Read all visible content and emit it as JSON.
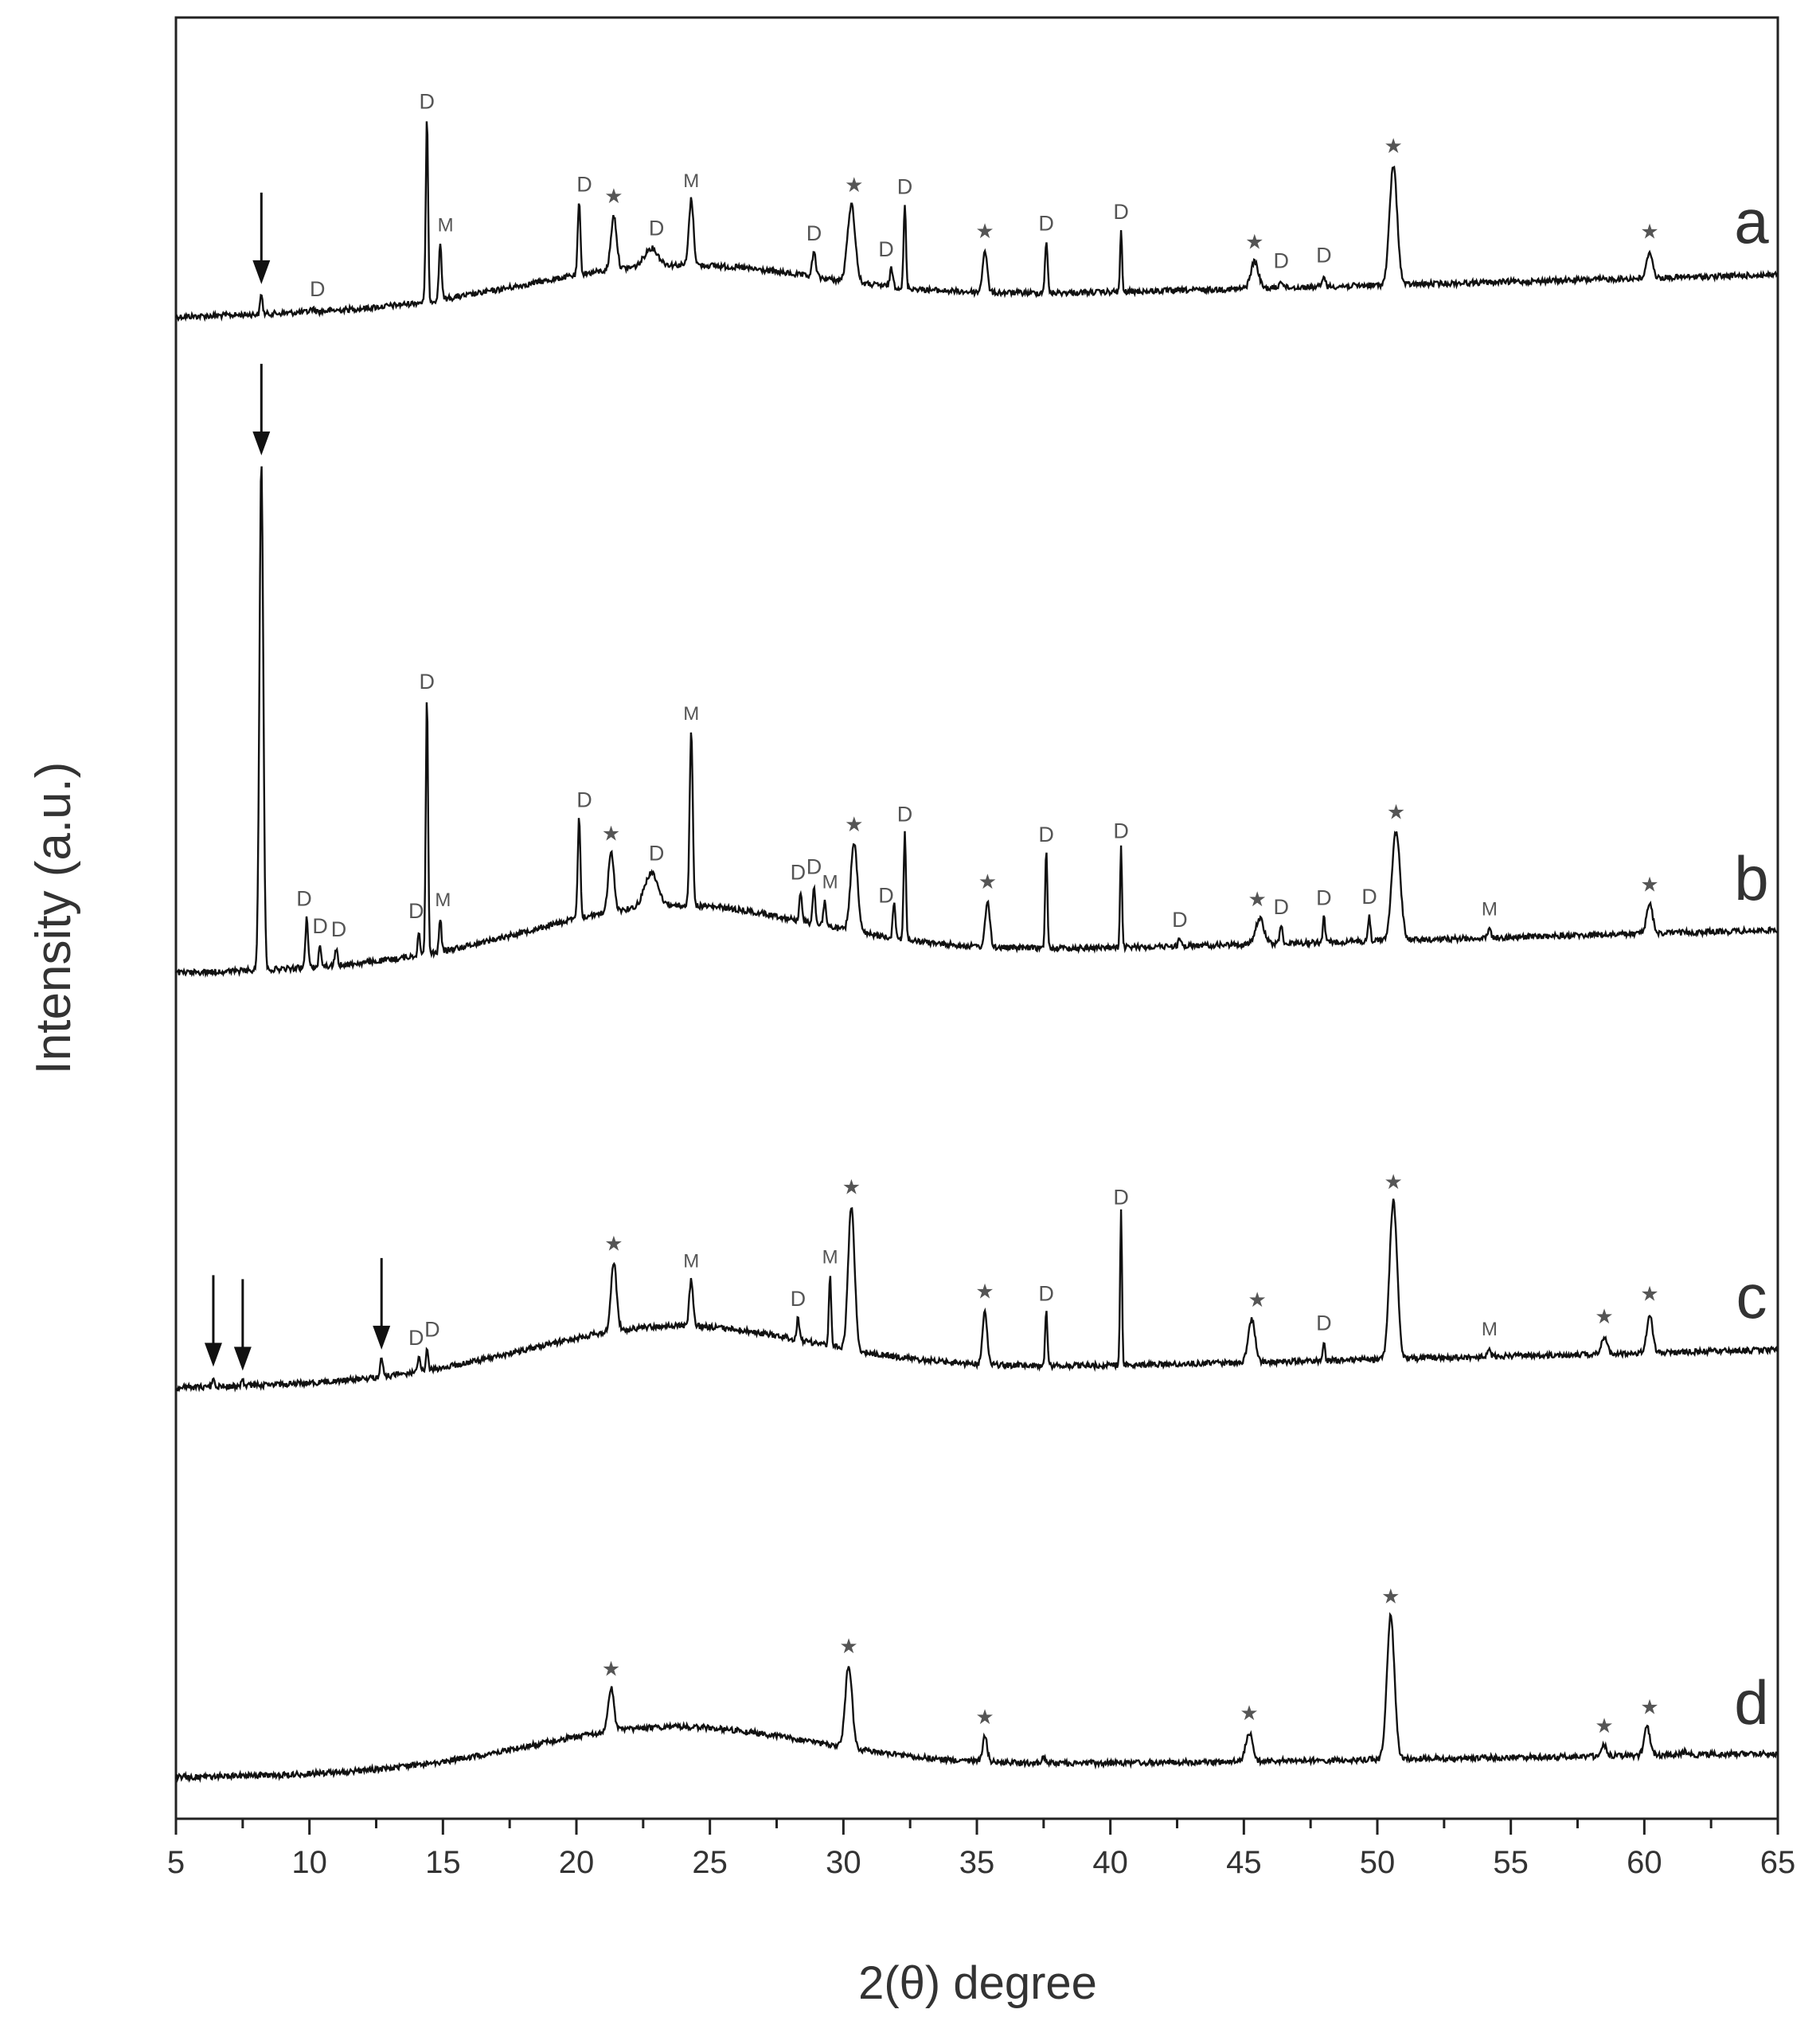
{
  "chart_data": {
    "type": "line",
    "xlabel": "2(θ) degree",
    "ylabel": "Intensity (a.u.)",
    "xlim": [
      5,
      65
    ],
    "x_ticks": [
      5,
      10,
      15,
      20,
      25,
      30,
      35,
      40,
      45,
      50,
      55,
      60,
      65
    ],
    "y_ticks": "none",
    "grid": false,
    "legend": "none",
    "series": [
      {
        "name": "a",
        "baseline": {
          "start": 0.0,
          "end": 0.55,
          "hump": 1.3
        },
        "peaks": [
          [
            8.2,
            0.35,
            0.06
          ],
          [
            10.1,
            0.05,
            0.1
          ],
          [
            14.4,
            3.1,
            0.06
          ],
          [
            14.9,
            0.95,
            0.07
          ],
          [
            20.1,
            1.2,
            0.07
          ],
          [
            21.4,
            0.9,
            0.15
          ],
          [
            22.8,
            0.3,
            0.35
          ],
          [
            24.3,
            1.1,
            0.12
          ],
          [
            28.9,
            0.4,
            0.1
          ],
          [
            30.3,
            1.3,
            0.2
          ],
          [
            31.8,
            0.3,
            0.08
          ],
          [
            32.3,
            1.4,
            0.06
          ],
          [
            35.3,
            0.7,
            0.12
          ],
          [
            37.6,
            0.85,
            0.07
          ],
          [
            40.4,
            1.05,
            0.05
          ],
          [
            45.4,
            0.45,
            0.2
          ],
          [
            46.4,
            0.12,
            0.1
          ],
          [
            48.0,
            0.2,
            0.07
          ],
          [
            50.6,
            2.0,
            0.2
          ],
          [
            60.2,
            0.45,
            0.15
          ]
        ],
        "labels": [
          {
            "x": 8.2,
            "text": "↓"
          },
          {
            "x": 10.3,
            "text": "D"
          },
          {
            "x": 14.4,
            "text": "D"
          },
          {
            "x": 15.1,
            "text": "M"
          },
          {
            "x": 20.3,
            "text": "D"
          },
          {
            "x": 21.4,
            "text": "★"
          },
          {
            "x": 23.0,
            "text": "D"
          },
          {
            "x": 24.3,
            "text": "M"
          },
          {
            "x": 28.9,
            "text": "D"
          },
          {
            "x": 30.4,
            "text": "★"
          },
          {
            "x": 31.6,
            "text": "D"
          },
          {
            "x": 32.3,
            "text": "D"
          },
          {
            "x": 35.3,
            "text": "★"
          },
          {
            "x": 37.6,
            "text": "D"
          },
          {
            "x": 40.4,
            "text": "D"
          },
          {
            "x": 45.4,
            "text": "★"
          },
          {
            "x": 46.4,
            "text": "D"
          },
          {
            "x": 48.0,
            "text": "D"
          },
          {
            "x": 50.6,
            "text": "★"
          },
          {
            "x": 60.2,
            "text": "★"
          }
        ]
      },
      {
        "name": "b",
        "baseline": {
          "start": 0.0,
          "end": 0.55,
          "hump": 1.3
        },
        "peaks": [
          [
            8.2,
            6.1,
            0.1
          ],
          [
            9.9,
            0.6,
            0.07
          ],
          [
            10.4,
            0.25,
            0.07
          ],
          [
            11.0,
            0.2,
            0.07
          ],
          [
            14.1,
            0.3,
            0.06
          ],
          [
            14.4,
            3.1,
            0.06
          ],
          [
            14.9,
            0.4,
            0.06
          ],
          [
            20.1,
            1.2,
            0.07
          ],
          [
            21.3,
            0.7,
            0.15
          ],
          [
            22.8,
            0.4,
            0.35
          ],
          [
            24.3,
            2.1,
            0.08
          ],
          [
            28.4,
            0.35,
            0.07
          ],
          [
            28.9,
            0.45,
            0.07
          ],
          [
            29.3,
            0.3,
            0.07
          ],
          [
            30.4,
            1.05,
            0.18
          ],
          [
            31.9,
            0.45,
            0.07
          ],
          [
            32.3,
            1.3,
            0.06
          ],
          [
            35.4,
            0.55,
            0.12
          ],
          [
            37.6,
            1.15,
            0.06
          ],
          [
            40.4,
            1.2,
            0.05
          ],
          [
            42.6,
            0.08,
            0.08
          ],
          [
            45.6,
            0.3,
            0.22
          ],
          [
            46.4,
            0.2,
            0.08
          ],
          [
            48.0,
            0.3,
            0.06
          ],
          [
            49.7,
            0.3,
            0.06
          ],
          [
            50.7,
            1.3,
            0.22
          ],
          [
            54.2,
            0.12,
            0.07
          ],
          [
            60.2,
            0.35,
            0.16
          ]
        ],
        "labels": [
          {
            "x": 8.2,
            "text": "↓"
          },
          {
            "x": 9.8,
            "text": "D"
          },
          {
            "x": 10.4,
            "text": "D"
          },
          {
            "x": 11.1,
            "text": "D"
          },
          {
            "x": 14.0,
            "text": "D"
          },
          {
            "x": 14.4,
            "text": "D"
          },
          {
            "x": 15.0,
            "text": "M"
          },
          {
            "x": 20.3,
            "text": "D"
          },
          {
            "x": 21.3,
            "text": "★"
          },
          {
            "x": 23.0,
            "text": "D"
          },
          {
            "x": 24.3,
            "text": "M"
          },
          {
            "x": 28.3,
            "text": "D"
          },
          {
            "x": 28.9,
            "text": "D"
          },
          {
            "x": 29.5,
            "text": "M"
          },
          {
            "x": 30.4,
            "text": "★"
          },
          {
            "x": 31.6,
            "text": "D"
          },
          {
            "x": 32.3,
            "text": "D"
          },
          {
            "x": 35.4,
            "text": "★"
          },
          {
            "x": 37.6,
            "text": "D"
          },
          {
            "x": 40.4,
            "text": "D"
          },
          {
            "x": 42.6,
            "text": "D"
          },
          {
            "x": 45.5,
            "text": "★"
          },
          {
            "x": 46.4,
            "text": "D"
          },
          {
            "x": 48.0,
            "text": "D"
          },
          {
            "x": 49.7,
            "text": "D"
          },
          {
            "x": 50.7,
            "text": "★"
          },
          {
            "x": 54.2,
            "text": "M"
          },
          {
            "x": 60.2,
            "text": "★"
          }
        ]
      },
      {
        "name": "c",
        "baseline": {
          "start": 0.0,
          "end": 0.55,
          "hump": 1.4
        },
        "peaks": [
          [
            6.4,
            0.15,
            0.06
          ],
          [
            7.5,
            0.08,
            0.06
          ],
          [
            12.7,
            0.25,
            0.07
          ],
          [
            14.1,
            0.2,
            0.06
          ],
          [
            14.4,
            0.3,
            0.06
          ],
          [
            21.4,
            0.95,
            0.15
          ],
          [
            24.3,
            0.65,
            0.1
          ],
          [
            28.3,
            0.3,
            0.07
          ],
          [
            29.5,
            1.0,
            0.06
          ],
          [
            30.3,
            2.0,
            0.17
          ],
          [
            35.3,
            0.75,
            0.12
          ],
          [
            37.6,
            0.75,
            0.06
          ],
          [
            40.4,
            2.15,
            0.05
          ],
          [
            45.3,
            0.6,
            0.18
          ],
          [
            48.0,
            0.25,
            0.06
          ],
          [
            50.6,
            2.2,
            0.2
          ],
          [
            54.2,
            0.12,
            0.07
          ],
          [
            58.5,
            0.25,
            0.14
          ],
          [
            60.2,
            0.55,
            0.15
          ]
        ],
        "labels": [
          {
            "x": 6.4,
            "text": "↓"
          },
          {
            "x": 7.5,
            "text": "↓"
          },
          {
            "x": 12.7,
            "text": "↓"
          },
          {
            "x": 14.0,
            "text": "D"
          },
          {
            "x": 14.6,
            "text": "D"
          },
          {
            "x": 21.4,
            "text": "★"
          },
          {
            "x": 24.3,
            "text": "M"
          },
          {
            "x": 28.3,
            "text": "D"
          },
          {
            "x": 29.5,
            "text": "M"
          },
          {
            "x": 30.3,
            "text": "★"
          },
          {
            "x": 35.3,
            "text": "★"
          },
          {
            "x": 37.6,
            "text": "D"
          },
          {
            "x": 40.4,
            "text": "D"
          },
          {
            "x": 45.5,
            "text": "★"
          },
          {
            "x": 48.0,
            "text": "D"
          },
          {
            "x": 50.6,
            "text": "★"
          },
          {
            "x": 54.2,
            "text": "M"
          },
          {
            "x": 58.5,
            "text": "★"
          },
          {
            "x": 60.2,
            "text": "★"
          }
        ]
      },
      {
        "name": "d",
        "baseline": {
          "start": 0.0,
          "end": 0.35,
          "hump": 1.2
        },
        "peaks": [
          [
            21.3,
            0.6,
            0.15
          ],
          [
            30.2,
            1.15,
            0.18
          ],
          [
            35.3,
            0.35,
            0.12
          ],
          [
            37.5,
            0.08,
            0.12
          ],
          [
            45.2,
            0.4,
            0.18
          ],
          [
            50.5,
            2.0,
            0.2
          ],
          [
            58.5,
            0.15,
            0.14
          ],
          [
            60.1,
            0.4,
            0.15
          ],
          [
            61.5,
            0.05,
            0.12
          ]
        ],
        "labels": [
          {
            "x": 21.3,
            "text": "★"
          },
          {
            "x": 30.2,
            "text": "★"
          },
          {
            "x": 35.3,
            "text": "★"
          },
          {
            "x": 45.2,
            "text": "★"
          },
          {
            "x": 50.5,
            "text": "★"
          },
          {
            "x": 58.5,
            "text": "★"
          },
          {
            "x": 60.2,
            "text": "★"
          }
        ]
      }
    ]
  }
}
